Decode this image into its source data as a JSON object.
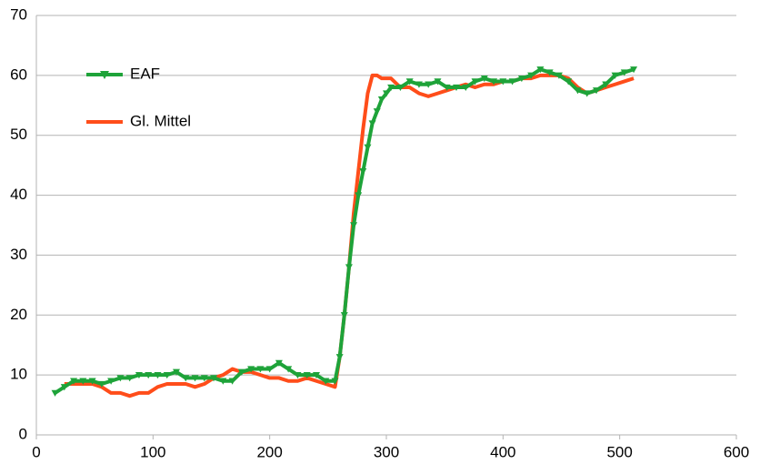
{
  "chart_data": {
    "type": "line",
    "x": [
      16,
      24,
      32,
      40,
      48,
      56,
      64,
      72,
      80,
      88,
      96,
      104,
      112,
      120,
      128,
      136,
      144,
      152,
      160,
      168,
      176,
      184,
      192,
      200,
      208,
      216,
      224,
      232,
      240,
      248,
      256,
      260,
      264,
      268,
      272,
      276,
      280,
      284,
      288,
      292,
      296,
      300,
      304,
      312,
      320,
      328,
      336,
      344,
      352,
      360,
      368,
      376,
      384,
      392,
      400,
      408,
      416,
      424,
      432,
      440,
      448,
      456,
      464,
      472,
      480,
      488,
      496,
      504,
      512
    ],
    "series": [
      {
        "name": "EAF",
        "color": "#1ea339",
        "marker": "triangle-down",
        "values": [
          7,
          8,
          9,
          9,
          9,
          8.5,
          9,
          9.5,
          9.5,
          10,
          10,
          10,
          10,
          10.5,
          9.5,
          9.5,
          9.5,
          9.5,
          9,
          9,
          10.5,
          11,
          11,
          11,
          12,
          11,
          10,
          10,
          10,
          9,
          9,
          13,
          20,
          28,
          35,
          40,
          44,
          48,
          52,
          54,
          56,
          57,
          58,
          58,
          59,
          58.5,
          58.5,
          59,
          58,
          58,
          58,
          59,
          59.5,
          59,
          59,
          59,
          59.5,
          60,
          61,
          60.5,
          60,
          59,
          57.5,
          57,
          57.5,
          58.5,
          60,
          60.5,
          61
        ]
      },
      {
        "name": "Gl. Mittel",
        "color": "#ff4d1a",
        "marker": "none",
        "values": [
          null,
          8.5,
          8.5,
          8.5,
          8.5,
          8,
          7,
          7,
          6.5,
          7,
          7,
          8,
          8.5,
          8.5,
          8.5,
          8,
          8.5,
          9.5,
          10,
          11,
          10.5,
          10.5,
          10,
          9.5,
          9.5,
          9,
          9,
          9.5,
          9,
          8.5,
          8,
          13,
          20,
          28,
          37,
          44,
          51,
          57,
          60,
          60,
          59.5,
          59.5,
          59.5,
          58,
          58,
          57,
          56.5,
          57,
          57.5,
          58,
          58.5,
          58,
          58.5,
          58.5,
          59,
          59,
          59.5,
          59.5,
          60,
          60,
          60,
          59.5,
          58,
          57,
          57.5,
          58,
          58.5,
          59,
          59.5
        ]
      }
    ],
    "xlim": [
      0,
      600
    ],
    "xticks": [
      0,
      100,
      200,
      300,
      400,
      500,
      600
    ],
    "ylim": [
      0,
      70
    ],
    "yticks": [
      0,
      10,
      20,
      30,
      40,
      50,
      60,
      70
    ],
    "grid": true,
    "legend": "top-left"
  }
}
